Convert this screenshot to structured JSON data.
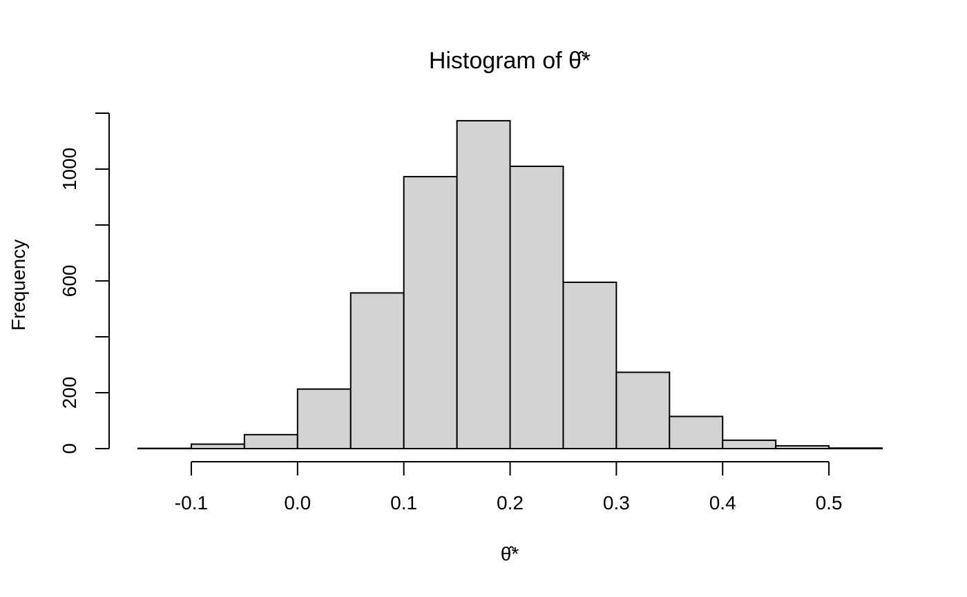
{
  "chart_data": {
    "type": "bar",
    "title_prefix": "Histogram of ",
    "title_symbol": "θ̂*",
    "xlabel": "θ̂*",
    "ylabel": "Frequency",
    "bins": [
      {
        "x0": -0.15,
        "x1": -0.1,
        "count": 1
      },
      {
        "x0": -0.1,
        "x1": -0.05,
        "count": 16
      },
      {
        "x0": -0.05,
        "x1": 0.0,
        "count": 50
      },
      {
        "x0": 0.0,
        "x1": 0.05,
        "count": 213
      },
      {
        "x0": 0.05,
        "x1": 0.1,
        "count": 557
      },
      {
        "x0": 0.1,
        "x1": 0.15,
        "count": 973
      },
      {
        "x0": 0.15,
        "x1": 0.2,
        "count": 1173
      },
      {
        "x0": 0.2,
        "x1": 0.25,
        "count": 1010
      },
      {
        "x0": 0.25,
        "x1": 0.3,
        "count": 595
      },
      {
        "x0": 0.3,
        "x1": 0.35,
        "count": 273
      },
      {
        "x0": 0.35,
        "x1": 0.4,
        "count": 115
      },
      {
        "x0": 0.4,
        "x1": 0.45,
        "count": 30
      },
      {
        "x0": 0.45,
        "x1": 0.5,
        "count": 10
      },
      {
        "x0": 0.5,
        "x1": 0.55,
        "count": 2
      }
    ],
    "x_ticks": [
      -0.1,
      0.0,
      0.1,
      0.2,
      0.3,
      0.4,
      0.5
    ],
    "x_tick_labels": [
      "-0.1",
      "0.0",
      "0.1",
      "0.2",
      "0.3",
      "0.4",
      "0.5"
    ],
    "y_ticks": [
      0,
      200,
      400,
      600,
      800,
      1000,
      1200
    ],
    "y_tick_labels": [
      "0",
      "200",
      "",
      "600",
      "",
      "1000",
      ""
    ],
    "xlim": [
      -0.15,
      0.55
    ],
    "ylim": [
      0,
      1200
    ],
    "grid": false,
    "legend": "none",
    "bar_fill": "#d3d3d3",
    "bar_stroke": "#000000"
  }
}
